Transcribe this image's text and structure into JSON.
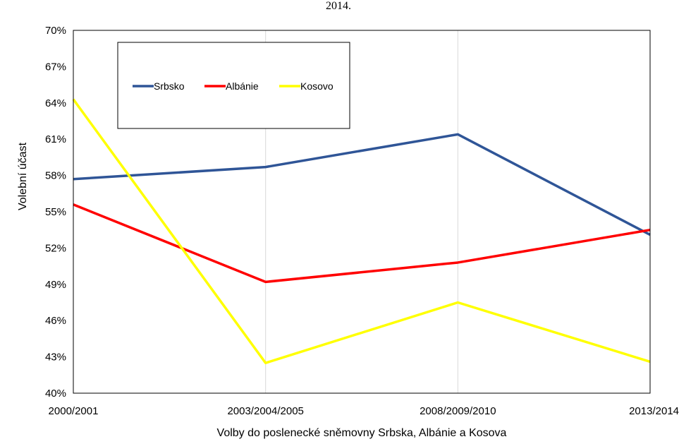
{
  "chart_data": {
    "type": "line",
    "title": "2014.",
    "categories": [
      "2000/2001",
      "2003/2004/2005",
      "2008/2009/2010",
      "2013/2014"
    ],
    "xlabel": "Volby do poslenecké sněmovny Srbska, Albánie a Kosova",
    "ylabel": "Volební účast",
    "ylim": [
      40,
      70
    ],
    "yticks": [
      40,
      43,
      46,
      49,
      52,
      55,
      58,
      61,
      64,
      67,
      70
    ],
    "ytick_labels": [
      "40%",
      "43%",
      "46%",
      "49%",
      "52%",
      "55%",
      "58%",
      "61%",
      "64%",
      "67%",
      "70%"
    ],
    "grid": "vertical",
    "legend_placement": "top-left",
    "series": [
      {
        "name": "Srbsko",
        "color": "#2F5597",
        "values": [
          57.7,
          58.7,
          61.4,
          53.1
        ]
      },
      {
        "name": "Albánie",
        "color": "#FF0000",
        "values": [
          55.6,
          49.2,
          50.8,
          53.5
        ]
      },
      {
        "name": "Kosovo",
        "color": "#FFFF00",
        "values": [
          64.3,
          42.5,
          47.5,
          42.6
        ]
      }
    ]
  }
}
